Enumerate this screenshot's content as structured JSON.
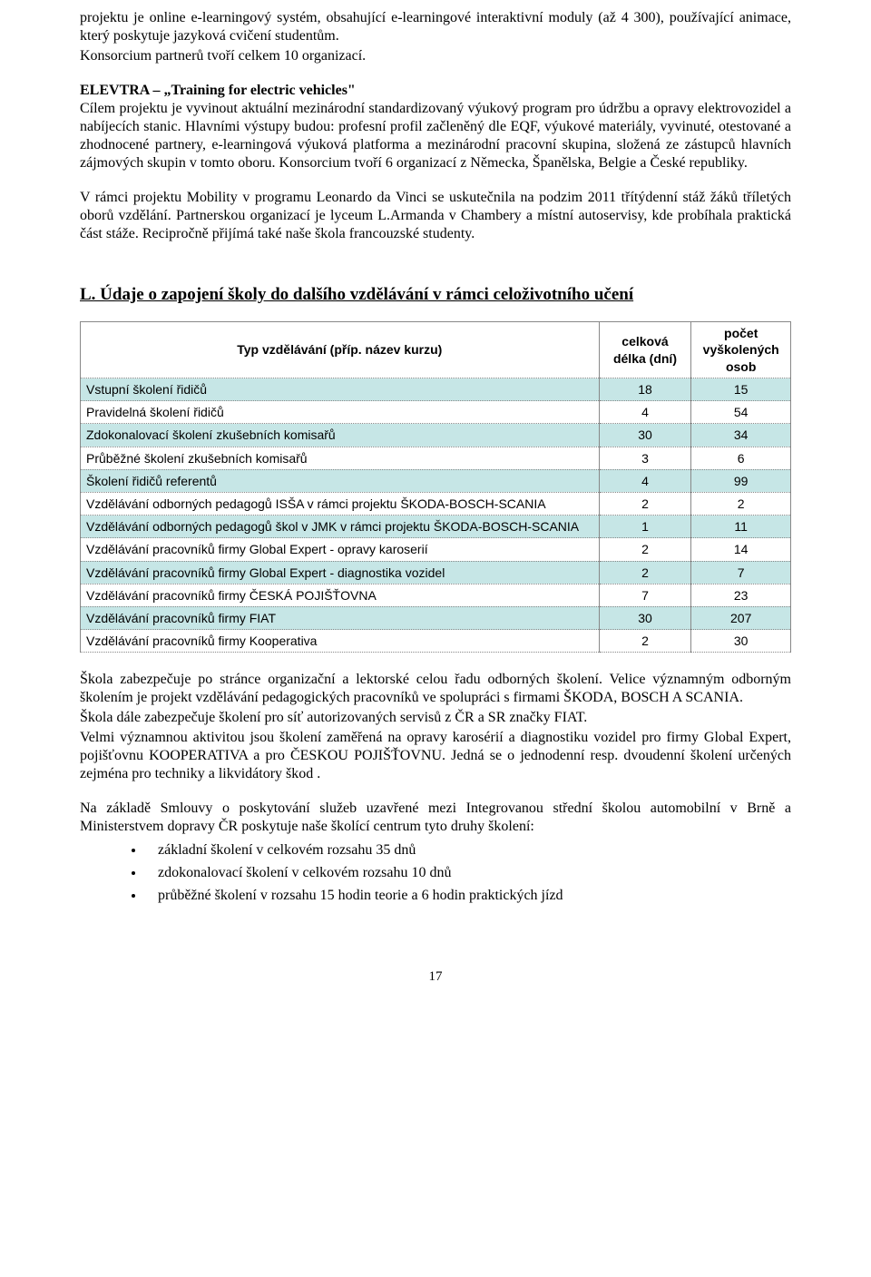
{
  "paragraphs": {
    "p1": "projektu je online e-learningový systém, obsahující e-learningové interaktivní moduly (až 4 300), používající animace, který poskytuje jazyková cvičení studentům.",
    "p1b": "Konsorcium partnerů tvoří celkem 10 organizací.",
    "p2_title": "ELEVTRA – „Training for electric vehicles\"",
    "p2": "Cílem projektu je vyvinout aktuální mezinárodní standardizovaný výukový program pro údržbu a opravy elektrovozidel a nabíjecích stanic. Hlavními výstupy budou: profesní profil začleněný dle EQF, výukové materiály, vyvinuté, otestované a zhodnocené partnery, e-learningová výuková platforma a mezinárodní pracovní skupina, složená ze zástupců hlavních zájmových skupin v tomto oboru. Konsorcium tvoří 6 organizací z Německa, Španělska, Belgie a České republiky.",
    "p3": "V rámci projektu Mobility v programu Leonardo da Vinci se uskutečnila na podzim 2011 třítýdenní stáž žáků tříletých oborů vzdělání. Partnerskou organizací je lyceum L.Armanda v Chambery a místní autoservisy, kde probíhala praktická část stáže. Recipročně přijímá také naše škola francouzské studenty.",
    "p4a": "Škola zabezpečuje po stránce organizační a lektorské celou řadu odborných školení. Velice významným odborným školením je projekt vzdělávání pedagogických pracovníků ve spolupráci s firmami ŠKODA, BOSCH A SCANIA.",
    "p4b": "Škola dále zabezpečuje školení pro síť autorizovaných servisů z ČR a SR značky FIAT.",
    "p4c": "Velmi významnou aktivitou jsou školení zaměřená na opravy karosérií a diagnostiku vozidel pro firmy Global Expert, pojišťovnu KOOPERATIVA a pro ČESKOU POJIŠŤOVNU. Jedná se o jednodenní resp. dvoudenní školení určených zejména pro techniky a likvidátory škod .",
    "p5": "Na základě Smlouvy o poskytování služeb uzavřené mezi Integrovanou střední školou automobilní v Brně a  Ministerstvem dopravy ČR poskytuje naše školící centrum tyto druhy školení:"
  },
  "section_title": "L. Údaje o zapojení školy do dalšího vzdělávání v rámci celoživotního učení",
  "table": {
    "columns": [
      "Typ vzdělávání (příp. název kurzu)",
      "celková délka (dní)",
      "počet vyškolených osob"
    ],
    "col_widths": [
      "73%",
      "13%",
      "14%"
    ],
    "header_bg": "#ffffff",
    "shaded_bg": "#c6e6e6",
    "border_color": "#888888",
    "rows": [
      {
        "cells": [
          "Vstupní školení řidičů",
          "18",
          "15"
        ],
        "shaded": true
      },
      {
        "cells": [
          "Pravidelná školení řidičů",
          "4",
          "54"
        ],
        "shaded": false
      },
      {
        "cells": [
          "Zdokonalovací školení zkušebních komisařů",
          "30",
          "34"
        ],
        "shaded": true
      },
      {
        "cells": [
          "Průběžné školení zkušebních komisařů",
          "3",
          "6"
        ],
        "shaded": false
      },
      {
        "cells": [
          "Školení řidičů referentů",
          "4",
          "99"
        ],
        "shaded": true
      },
      {
        "cells": [
          "Vzdělávání odborných pedagogů ISŠA v rámci projektu ŠKODA-BOSCH-SCANIA",
          "2",
          "2"
        ],
        "shaded": false
      },
      {
        "cells": [
          "Vzdělávání odborných pedagogů škol v JMK v rámci projektu ŠKODA-BOSCH-SCANIA",
          "1",
          "11"
        ],
        "shaded": true
      },
      {
        "cells": [
          "Vzdělávání pracovníků firmy Global Expert - opravy karoserií",
          "2",
          "14"
        ],
        "shaded": false
      },
      {
        "cells": [
          "Vzdělávání pracovníků firmy Global Expert - diagnostika vozidel",
          "2",
          "7"
        ],
        "shaded": true
      },
      {
        "cells": [
          "Vzdělávání pracovníků firmy ČESKÁ POJIŠŤOVNA",
          "7",
          "23"
        ],
        "shaded": false
      },
      {
        "cells": [
          "Vzdělávání pracovníků firmy FIAT",
          "30",
          "207"
        ],
        "shaded": true
      },
      {
        "cells": [
          "Vzdělávání pracovníků firmy Kooperativa",
          "2",
          "30"
        ],
        "shaded": false
      }
    ]
  },
  "bullets": [
    "základní školení v celkovém rozsahu 35 dnů",
    "zdokonalovací školení v celkovém rozsahu 10 dnů",
    "průběžné školení v rozsahu 15 hodin teorie a 6 hodin praktických jízd"
  ],
  "page_number": "17",
  "colors": {
    "text": "#000000",
    "background": "#ffffff"
  },
  "fonts": {
    "body_family": "Times New Roman",
    "body_size_pt": 12,
    "table_family": "Arial",
    "table_size_pt": 10.5
  }
}
